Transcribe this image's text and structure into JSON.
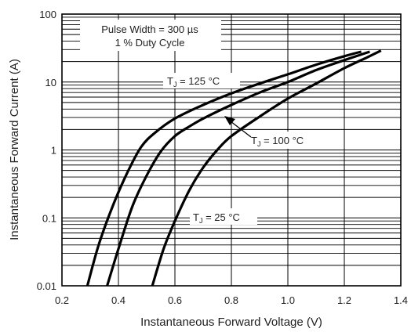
{
  "chart_data": {
    "type": "line",
    "xlabel": "Instantaneous Forward Voltage (V)",
    "ylabel": "Instantaneous Forward Current (A)",
    "xscale": "linear",
    "yscale": "log",
    "xlim": [
      0.2,
      1.4
    ],
    "ylim": [
      0.01,
      100
    ],
    "x_ticks": [
      0.2,
      0.4,
      0.6,
      0.8,
      1.0,
      1.2,
      1.4
    ],
    "x_tick_labels": [
      "0.2",
      "0.4",
      "0.6",
      "0.8",
      "1.0",
      "1.2",
      "1.4"
    ],
    "y_ticks": [
      0.01,
      0.1,
      1,
      10,
      100
    ],
    "y_tick_labels": [
      "0.01",
      "0.1",
      "1",
      "10",
      "100"
    ],
    "grid": true,
    "annotation": {
      "line1": "Pulse Width = 300 µs",
      "line2": "1 % Duty Cycle"
    },
    "series": [
      {
        "label_main": "T",
        "label_sub": "J",
        "label_rest": " = 125 °C",
        "points": [
          [
            0.29,
            0.01
          ],
          [
            0.33,
            0.04
          ],
          [
            0.38,
            0.15
          ],
          [
            0.43,
            0.45
          ],
          [
            0.48,
            1.1
          ],
          [
            0.53,
            1.8
          ],
          [
            0.6,
            2.9
          ],
          [
            0.7,
            4.6
          ],
          [
            0.8,
            6.8
          ],
          [
            0.9,
            9.5
          ],
          [
            1.0,
            13
          ],
          [
            1.1,
            18
          ],
          [
            1.2,
            24
          ],
          [
            1.26,
            28
          ]
        ]
      },
      {
        "label_main": "T",
        "label_sub": "J",
        "label_rest": " = 100 °C",
        "points": [
          [
            0.36,
            0.01
          ],
          [
            0.4,
            0.035
          ],
          [
            0.45,
            0.15
          ],
          [
            0.5,
            0.42
          ],
          [
            0.55,
            0.95
          ],
          [
            0.6,
            1.6
          ],
          [
            0.65,
            2.2
          ],
          [
            0.7,
            2.9
          ],
          [
            0.8,
            4.6
          ],
          [
            0.9,
            7
          ],
          [
            1.0,
            10
          ],
          [
            1.1,
            15
          ],
          [
            1.2,
            21
          ],
          [
            1.29,
            28
          ]
        ]
      },
      {
        "label_main": "T",
        "label_sub": "J",
        "label_rest": " = 25 °C",
        "points": [
          [
            0.52,
            0.01
          ],
          [
            0.56,
            0.035
          ],
          [
            0.6,
            0.09
          ],
          [
            0.65,
            0.25
          ],
          [
            0.7,
            0.55
          ],
          [
            0.75,
            1.0
          ],
          [
            0.8,
            1.6
          ],
          [
            0.9,
            3.1
          ],
          [
            1.0,
            5.7
          ],
          [
            1.1,
            9.5
          ],
          [
            1.2,
            16
          ],
          [
            1.28,
            23
          ],
          [
            1.33,
            29
          ]
        ]
      }
    ]
  }
}
